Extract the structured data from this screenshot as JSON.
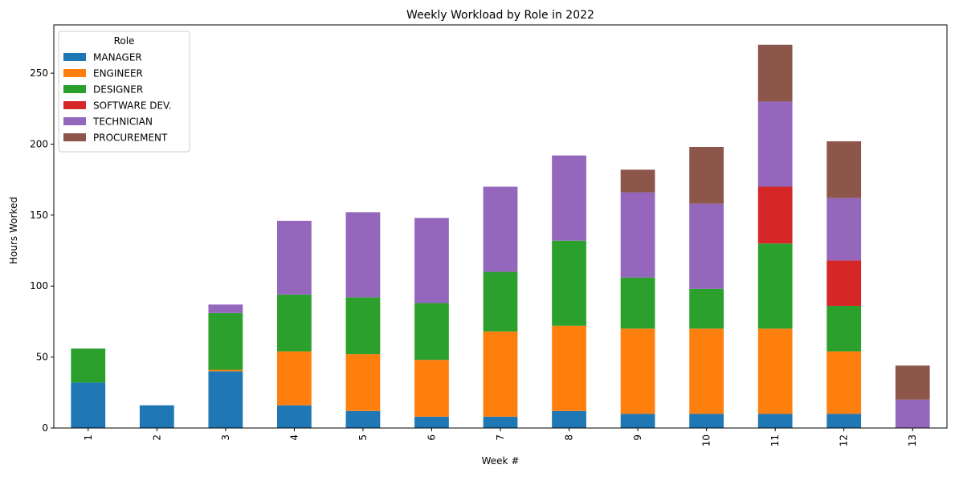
{
  "chart_data": {
    "type": "bar",
    "stacked": true,
    "title": "Weekly Workload by Role in 2022",
    "xlabel": "Week #",
    "ylabel": "Hours Worked",
    "categories": [
      "1",
      "2",
      "3",
      "4",
      "5",
      "6",
      "7",
      "8",
      "9",
      "10",
      "11",
      "12",
      "13"
    ],
    "ylim": [
      0,
      284
    ],
    "yticks": [
      0,
      50,
      100,
      150,
      200,
      250
    ],
    "grid": false,
    "legend": {
      "title": "Role",
      "placement": "top-left"
    },
    "series": [
      {
        "name": "MANAGER",
        "color": "#1f77b4",
        "values": [
          32,
          16,
          40,
          16,
          12,
          8,
          8,
          12,
          10,
          10,
          10,
          10,
          0
        ]
      },
      {
        "name": "ENGINEER",
        "color": "#ff7f0e",
        "values": [
          0,
          0,
          1,
          38,
          40,
          40,
          60,
          60,
          60,
          60,
          60,
          44,
          0
        ]
      },
      {
        "name": "DESIGNER",
        "color": "#2ca02c",
        "values": [
          24,
          0,
          40,
          40,
          40,
          40,
          42,
          60,
          36,
          28,
          60,
          32,
          0
        ]
      },
      {
        "name": "SOFTWARE DEV.",
        "color": "#d62728",
        "values": [
          0,
          0,
          0,
          0,
          0,
          0,
          0,
          0,
          0,
          0,
          40,
          32,
          0
        ]
      },
      {
        "name": "TECHNICIAN",
        "color": "#9467bd",
        "values": [
          0,
          0,
          6,
          52,
          60,
          60,
          60,
          60,
          60,
          60,
          60,
          44,
          20
        ]
      },
      {
        "name": "PROCUREMENT",
        "color": "#8c564b",
        "values": [
          0,
          0,
          0,
          0,
          0,
          0,
          0,
          0,
          16,
          40,
          40,
          40,
          24
        ]
      }
    ]
  }
}
